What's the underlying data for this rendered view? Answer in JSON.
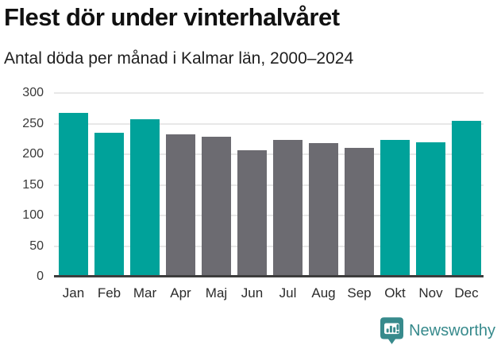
{
  "header": {
    "title": "Flest dör under vinterhalvåret",
    "subtitle": "Antal döda per månad i Kalmar län, 2000–2024"
  },
  "chart_data": {
    "type": "bar",
    "title": "Flest dör under vinterhalvåret",
    "subtitle": "Antal döda per månad i Kalmar län, 2000–2024",
    "categories": [
      "Jan",
      "Feb",
      "Mar",
      "Apr",
      "Maj",
      "Jun",
      "Jul",
      "Aug",
      "Sep",
      "Okt",
      "Nov",
      "Dec"
    ],
    "values": [
      267,
      235,
      257,
      233,
      229,
      207,
      224,
      218,
      210,
      224,
      219,
      255
    ],
    "bar_colors": [
      "#00a29a",
      "#00a29a",
      "#00a29a",
      "#6c6b71",
      "#6c6b71",
      "#6c6b71",
      "#6c6b71",
      "#6c6b71",
      "#6c6b71",
      "#00a29a",
      "#00a29a",
      "#00a29a"
    ],
    "xlabel": "",
    "ylabel": "",
    "ylim": [
      0,
      300
    ],
    "yticks": [
      0,
      50,
      100,
      150,
      200,
      250,
      300
    ],
    "grid": true,
    "legend": false,
    "highlight_color": "#00a29a",
    "base_color": "#6c6b71"
  },
  "footer": {
    "brand": "Newsworthy",
    "logo_icon": "newsworthy-speech-bubble-chart-icon",
    "brand_color": "#378a8c"
  },
  "colors": {
    "background": "#ffffff",
    "title_text": "#111111",
    "subtitle_text": "#1f1f1f",
    "tick_text": "#3a3a3a",
    "gridline": "#e8e8e8",
    "axis_line": "#3d3d3d",
    "winter_bar": "#00a29a",
    "summer_bar": "#6c6b71"
  }
}
